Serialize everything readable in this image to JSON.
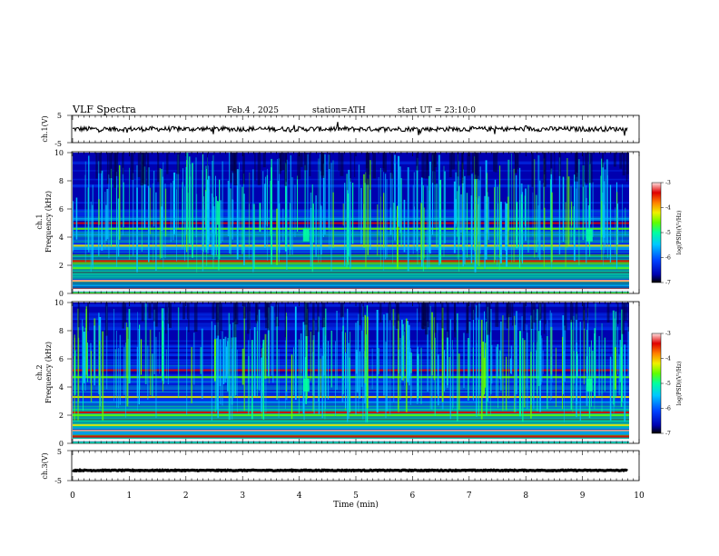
{
  "header": {
    "title": "VLF Spectra",
    "date": "Feb.4 , 2025",
    "station": "station=ATH",
    "start_ut": "start UT =  23:10:0"
  },
  "chart_data": [
    {
      "type": "line",
      "name": "ch1-waveform",
      "ylabel": "ch.1(V)",
      "ylim": [
        -5,
        5
      ],
      "yticks": [
        "5",
        "-5"
      ],
      "xlim": [
        0,
        9.8
      ],
      "baseline": 0,
      "amplitude": 0.9,
      "color": "#000000"
    },
    {
      "type": "heatmap",
      "name": "ch1-spectrogram",
      "ylabel": "ch.1\nFrequency (kHz)",
      "ylim": [
        0,
        10
      ],
      "yticks": [
        "0",
        "2",
        "4",
        "6",
        "8",
        "10"
      ],
      "xlim": [
        0,
        9.8
      ],
      "features": {
        "strong_bands_khz": [
          0.3,
          0.9,
          1.8,
          2.3,
          3.4,
          4.6,
          5.0
        ],
        "burst_times_min": [
          4.1,
          9.1
        ],
        "burst_freq_khz": [
          3.7,
          4.6
        ]
      },
      "colorbar": {
        "label": "log(PSD)(V²/Hz)",
        "range": [
          -7,
          -3
        ],
        "ticks": [
          "-3",
          "-4",
          "-5",
          "-6",
          "-7"
        ],
        "colors": [
          "#000000",
          "#0000b0",
          "#0040ff",
          "#00c8ff",
          "#00ffa0",
          "#60ff00",
          "#f0f000",
          "#ff8000",
          "#e00000",
          "#ffe0e0"
        ]
      }
    },
    {
      "type": "heatmap",
      "name": "ch2-spectrogram",
      "ylabel": "ch.2\nFrequency (kHz)",
      "ylim": [
        0,
        10
      ],
      "yticks": [
        "0",
        "2",
        "4",
        "6",
        "8",
        "10"
      ],
      "xlim": [
        0,
        9.8
      ],
      "features": {
        "strong_bands_khz": [
          0.5,
          1.3,
          2.0,
          2.2,
          3.3,
          4.7,
          5.2
        ],
        "burst_times_min": [
          4.1,
          9.1
        ],
        "burst_freq_khz": [
          3.7,
          4.6
        ]
      },
      "colorbar": {
        "label": "log(PSD)(V²/Hz)",
        "range": [
          -7,
          -3
        ],
        "ticks": [
          "-3",
          "-4",
          "-5",
          "-6",
          "-7"
        ],
        "colors": [
          "#000000",
          "#0000b0",
          "#0040ff",
          "#00c8ff",
          "#00ffa0",
          "#60ff00",
          "#f0f000",
          "#ff8000",
          "#e00000",
          "#ffe0e0"
        ]
      }
    },
    {
      "type": "line",
      "name": "ch3-waveform",
      "ylabel": "ch.3(V)",
      "ylim": [
        -5,
        5
      ],
      "yticks": [
        "5",
        "-5"
      ],
      "xlim": [
        0,
        9.8
      ],
      "baseline": -1.6,
      "amplitude": 0.15,
      "color": "#000000"
    }
  ],
  "xaxis": {
    "label": "Time (min)",
    "range": [
      0,
      10
    ],
    "ticks": [
      "0",
      "1",
      "2",
      "3",
      "4",
      "5",
      "6",
      "7",
      "8",
      "9",
      "10"
    ]
  }
}
